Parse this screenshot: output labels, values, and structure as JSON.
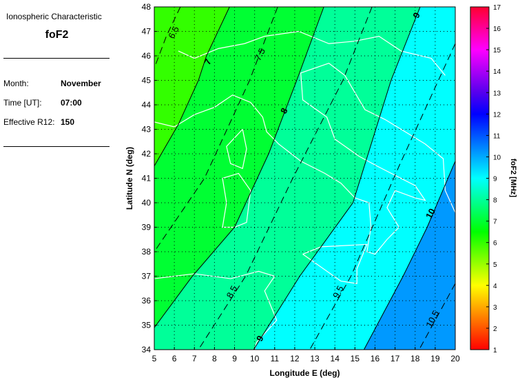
{
  "panel": {
    "subtitle": "Ionospheric Characteristic",
    "title": "foF2",
    "month_label": "Month:",
    "month": "November",
    "time_label": "Time [UT]:",
    "time": "07:00",
    "r12_label": "Effective R12:",
    "r12": "150"
  },
  "chart_data": {
    "type": "contour",
    "xlabel": "Longitude E (deg)",
    "ylabel": "Latitude N (deg)",
    "xlim": [
      5,
      20
    ],
    "ylim": [
      34,
      48
    ],
    "xticks": [
      5,
      6,
      7,
      8,
      9,
      10,
      11,
      12,
      13,
      14,
      15,
      16,
      17,
      18,
      19,
      20
    ],
    "yticks": [
      34,
      35,
      36,
      37,
      38,
      39,
      40,
      41,
      42,
      43,
      44,
      45,
      46,
      47,
      48
    ],
    "grid": true,
    "colorbar": {
      "label": "foF2 [MHz]",
      "range": [
        1,
        17
      ],
      "ticks": [
        1,
        2,
        3,
        4,
        5,
        6,
        7,
        8,
        9,
        10,
        11,
        12,
        13,
        14,
        15,
        16,
        17
      ]
    },
    "bands": [
      {
        "range": "<7",
        "color": "#33ff00"
      },
      {
        "range": "7-8",
        "color": "#00ff33"
      },
      {
        "range": "8-9",
        "color": "#00ff99"
      },
      {
        "range": "9-10",
        "color": "#00ffff"
      },
      {
        "range": "10-11",
        "color": "#0099ff"
      }
    ],
    "contours": [
      {
        "level": 6.5,
        "style": "dashed",
        "points": [
          [
            6.3,
            48
          ],
          [
            5.6,
            46.8
          ],
          [
            5,
            45.5
          ]
        ]
      },
      {
        "level": 7,
        "style": "solid",
        "points": [
          [
            8.75,
            48
          ],
          [
            7.6,
            46
          ],
          [
            7.2,
            45
          ],
          [
            6.2,
            43.2
          ],
          [
            5,
            41.5
          ]
        ]
      },
      {
        "level": 7.5,
        "style": "dashed",
        "points": [
          [
            11.15,
            48
          ],
          [
            9.75,
            45
          ],
          [
            7.5,
            41
          ],
          [
            5,
            38
          ]
        ]
      },
      {
        "level": 8,
        "style": "solid",
        "points": [
          [
            13.45,
            48
          ],
          [
            12.1,
            45
          ],
          [
            10.7,
            42
          ],
          [
            9,
            39
          ],
          [
            6.9,
            37
          ],
          [
            5,
            34.9
          ]
        ]
      },
      {
        "level": 8.5,
        "style": "dashed",
        "points": [
          [
            15.85,
            48
          ],
          [
            14.4,
            45
          ],
          [
            11.9,
            41
          ],
          [
            9.55,
            37
          ],
          [
            7.2,
            34
          ]
        ]
      },
      {
        "level": 9,
        "style": "solid",
        "points": [
          [
            18.25,
            48
          ],
          [
            16.8,
            45
          ],
          [
            14.9,
            40
          ],
          [
            12.25,
            37
          ],
          [
            9.95,
            34
          ]
        ]
      },
      {
        "level": 9.5,
        "style": "dashed",
        "points": [
          [
            20,
            46.5
          ],
          [
            17.2,
            41.5
          ],
          [
            14.8,
            37
          ],
          [
            12.75,
            34
          ]
        ]
      },
      {
        "level": 10,
        "style": "solid",
        "points": [
          [
            20,
            41.7
          ],
          [
            18.6,
            39
          ],
          [
            17.4,
            37
          ],
          [
            15.45,
            34
          ]
        ]
      },
      {
        "level": 10.5,
        "style": "dashed",
        "points": [
          [
            20,
            36.7
          ],
          [
            18.2,
            34
          ]
        ]
      }
    ],
    "contour_labels": [
      {
        "text": "6.5",
        "lon": 6.1,
        "lat": 46.9
      },
      {
        "text": "7",
        "lon": 7.8,
        "lat": 45.7
      },
      {
        "text": "7.5",
        "lon": 10.4,
        "lat": 46.0
      },
      {
        "text": "8",
        "lon": 11.6,
        "lat": 43.7
      },
      {
        "text": "9",
        "lon": 18.2,
        "lat": 47.6
      },
      {
        "text": "8.5",
        "lon": 9.0,
        "lat": 36.3
      },
      {
        "text": "9.5",
        "lon": 14.3,
        "lat": 36.3
      },
      {
        "text": "9",
        "lon": 10.4,
        "lat": 34.4
      },
      {
        "text": "10",
        "lon": 18.9,
        "lat": 39.5
      },
      {
        "text": "10.5",
        "lon": 19.0,
        "lat": 35.2
      }
    ]
  }
}
